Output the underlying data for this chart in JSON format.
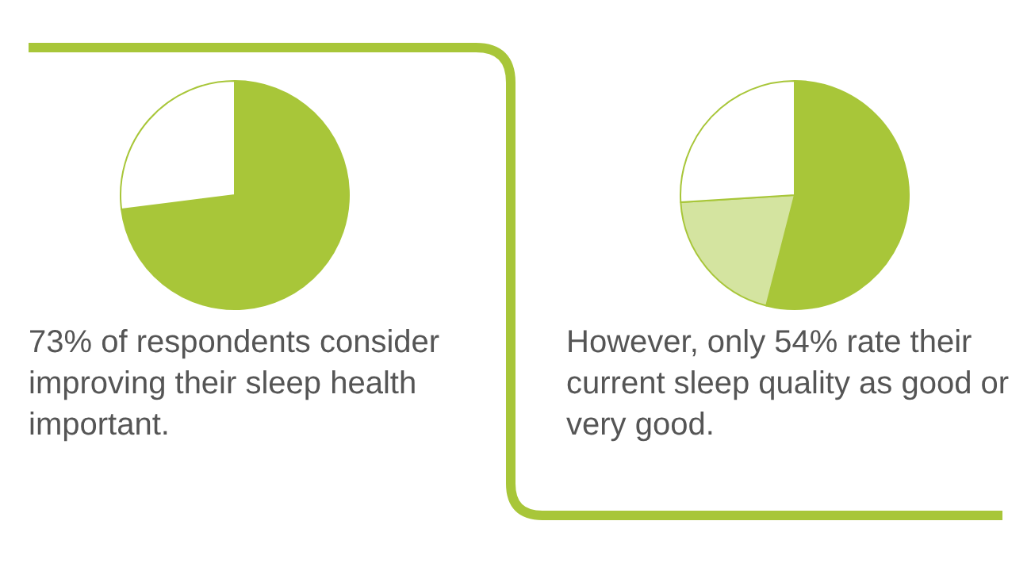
{
  "chart_data": [
    {
      "type": "pie",
      "categories": [
        null,
        null
      ],
      "values": [
        73,
        27
      ],
      "colors": [
        "#a8c639",
        "#ffffff"
      ],
      "annotations": [
        "73% of respondents consider improving their sleep health important."
      ]
    },
    {
      "type": "pie",
      "categories": [
        null,
        null,
        null
      ],
      "values": [
        54,
        20,
        26
      ],
      "colors": [
        "#a8c639",
        "#d4e4a0",
        "#ffffff"
      ],
      "annotations": [
        "However, only 54% rate their current sleep quality as good or very good."
      ]
    }
  ]
}
